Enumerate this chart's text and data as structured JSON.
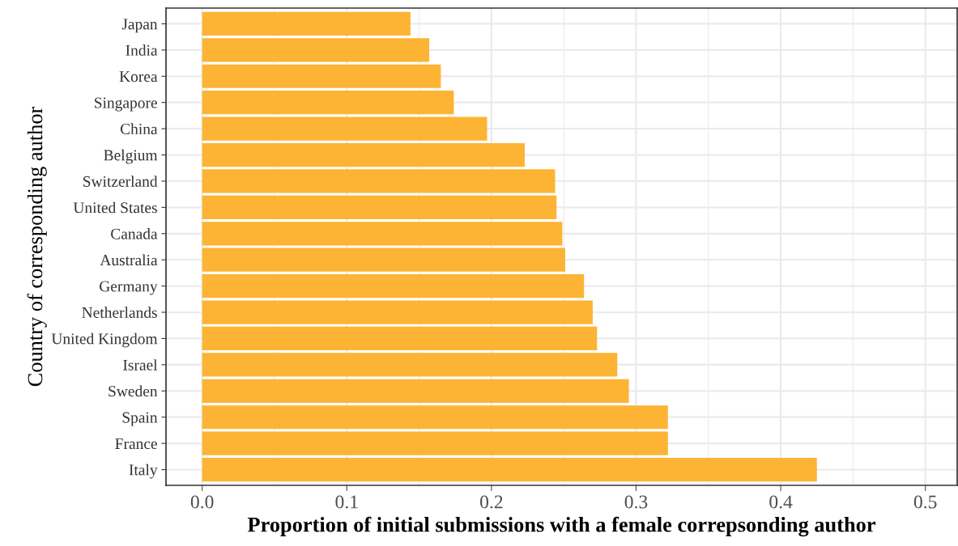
{
  "chart_data": {
    "type": "bar",
    "orientation": "horizontal",
    "xlabel": "Proportion of initial submissions with a female correpsonding author",
    "ylabel": "Country of corresponding author",
    "categories": [
      "Japan",
      "India",
      "Korea",
      "Singapore",
      "China",
      "Belgium",
      "Switzerland",
      "United States",
      "Canada",
      "Australia",
      "Germany",
      "Netherlands",
      "United Kingdom",
      "Israel",
      "Sweden",
      "Spain",
      "France",
      "Italy"
    ],
    "values": [
      0.144,
      0.157,
      0.165,
      0.174,
      0.197,
      0.223,
      0.244,
      0.245,
      0.249,
      0.251,
      0.264,
      0.27,
      0.273,
      0.287,
      0.295,
      0.322,
      0.322,
      0.425
    ],
    "color": "#fdb333",
    "xlim": [
      -0.025,
      0.522
    ],
    "xticks": [
      {
        "value": 0,
        "label": "0.0"
      },
      0.1,
      0.2,
      0.3,
      0.4,
      0.5
    ],
    "grid": true
  }
}
